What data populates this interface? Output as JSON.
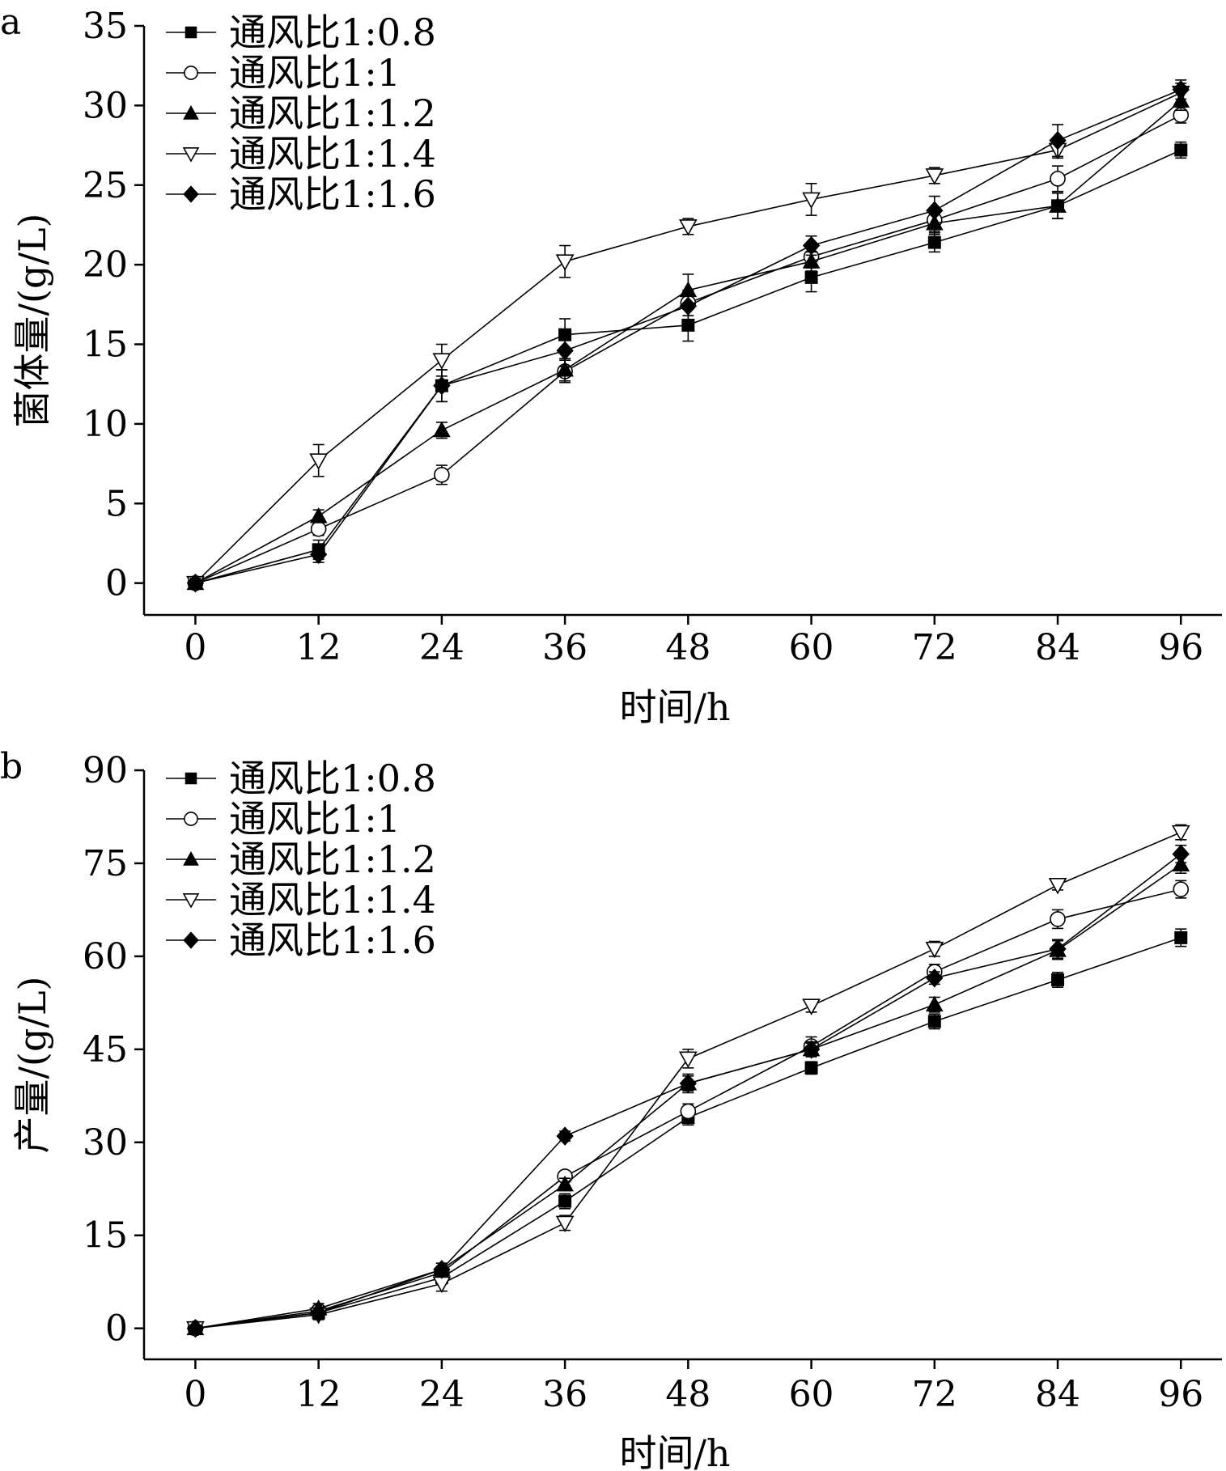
{
  "chart_data": [
    {
      "type": "line",
      "panel_label": "a",
      "title": "",
      "xlabel": "时间/h",
      "ylabel": "菌体量/(g/L)",
      "x": [
        0,
        12,
        24,
        36,
        48,
        60,
        72,
        84,
        96
      ],
      "x_ticks": [
        0,
        12,
        24,
        36,
        48,
        60,
        72,
        84,
        96
      ],
      "xlim": [
        -5,
        100
      ],
      "ylim": [
        -2,
        35
      ],
      "y_ticks": [
        0,
        5,
        10,
        15,
        20,
        25,
        30,
        35
      ],
      "grid": false,
      "legend_position": "top-left",
      "series": [
        {
          "name": "通风比1:0.8",
          "marker": "square-filled",
          "values": [
            0,
            2.1,
            12.4,
            15.6,
            16.2,
            19.2,
            21.4,
            23.7,
            27.2
          ],
          "errors": [
            0.3,
            0.6,
            1.0,
            1.0,
            1.0,
            0.9,
            0.6,
            0.8,
            0.5
          ]
        },
        {
          "name": "通风比1:1",
          "marker": "circle-open",
          "values": [
            0,
            3.4,
            6.8,
            13.3,
            17.6,
            20.5,
            22.8,
            25.4,
            29.4
          ],
          "errors": [
            0.3,
            0.4,
            0.6,
            0.7,
            0.8,
            0.7,
            0.7,
            0.8,
            0.5
          ]
        },
        {
          "name": "通风比1:1.2",
          "marker": "triangle-up-filled",
          "values": [
            0,
            4.2,
            9.6,
            13.4,
            18.4,
            20.2,
            22.6,
            23.7,
            30.3
          ],
          "errors": [
            0.3,
            0.4,
            0.5,
            0.7,
            1.0,
            0.6,
            0.7,
            0.8,
            0.6
          ]
        },
        {
          "name": "通风比1:1.4",
          "marker": "triangle-down-open",
          "values": [
            0,
            7.7,
            14.0,
            20.2,
            22.4,
            24.1,
            25.6,
            27.2,
            30.8
          ],
          "errors": [
            0.3,
            1.0,
            1.0,
            1.0,
            0.5,
            1.0,
            0.5,
            0.5,
            0.6
          ]
        },
        {
          "name": "通风比1:1.6",
          "marker": "diamond-filled",
          "values": [
            0,
            1.8,
            12.4,
            14.6,
            17.4,
            21.2,
            23.4,
            27.8,
            31.0
          ],
          "errors": [
            0.3,
            0.5,
            1.0,
            1.0,
            0.9,
            0.6,
            0.9,
            1.0,
            0.6
          ]
        }
      ]
    },
    {
      "type": "line",
      "panel_label": "b",
      "title": "",
      "xlabel": "时间/h",
      "ylabel": "产量/(g/L)",
      "x": [
        0,
        12,
        24,
        36,
        48,
        60,
        72,
        84,
        96
      ],
      "x_ticks": [
        0,
        12,
        24,
        36,
        48,
        60,
        72,
        84,
        96
      ],
      "xlim": [
        -5,
        100
      ],
      "ylim": [
        -5,
        90
      ],
      "y_ticks": [
        0,
        15,
        30,
        45,
        60,
        75,
        90
      ],
      "grid": false,
      "legend_position": "top-left",
      "series": [
        {
          "name": "通风比1:0.8",
          "marker": "square-filled",
          "values": [
            0,
            2.5,
            8.2,
            20.5,
            34.0,
            42.0,
            49.5,
            56.2,
            63.0
          ],
          "errors": [
            0.4,
            0.8,
            1.0,
            1.2,
            1.2,
            1.0,
            1.2,
            1.2,
            1.4
          ]
        },
        {
          "name": "通风比1:1",
          "marker": "circle-open",
          "values": [
            0,
            2.8,
            9.0,
            24.5,
            35.0,
            45.5,
            57.5,
            66.0,
            70.8
          ],
          "errors": [
            0.4,
            0.8,
            1.0,
            0.8,
            1.2,
            1.5,
            1.2,
            1.5,
            1.4
          ]
        },
        {
          "name": "通风比1:1.2",
          "marker": "triangle-up-filled",
          "values": [
            0,
            3.2,
            9.5,
            23.2,
            39.5,
            45.0,
            52.2,
            61.0,
            74.8
          ],
          "errors": [
            0.4,
            0.8,
            1.0,
            1.0,
            1.5,
            1.0,
            1.2,
            1.5,
            1.4
          ]
        },
        {
          "name": "通风比1:1.4",
          "marker": "triangle-down-open",
          "values": [
            0,
            2.2,
            7.2,
            17.0,
            43.5,
            52.0,
            61.2,
            71.5,
            80.0
          ],
          "errors": [
            0.4,
            0.8,
            1.2,
            1.2,
            1.5,
            1.0,
            1.2,
            0.8,
            1.2
          ]
        },
        {
          "name": "通风比1:1.6",
          "marker": "diamond-filled",
          "values": [
            0,
            2.5,
            9.5,
            31.0,
            39.5,
            45.0,
            56.5,
            61.2,
            76.5
          ],
          "errors": [
            0.4,
            0.8,
            1.0,
            0.8,
            1.2,
            1.2,
            1.0,
            1.5,
            1.4
          ]
        }
      ]
    }
  ]
}
